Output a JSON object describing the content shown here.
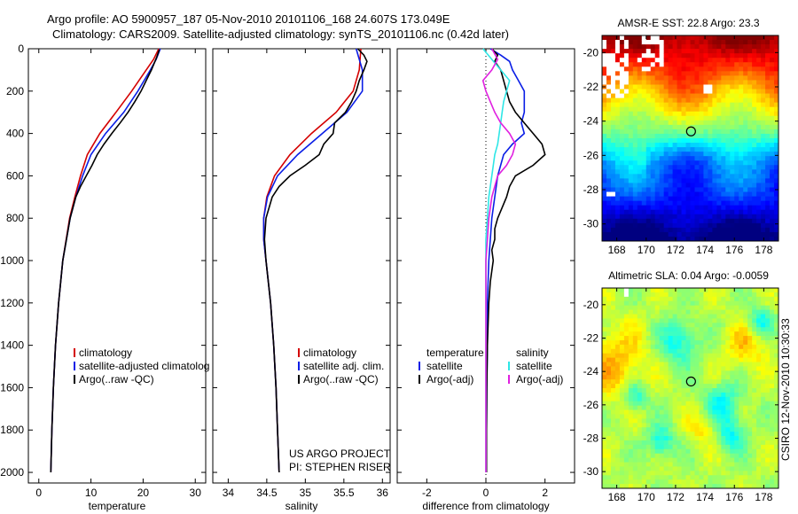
{
  "title": {
    "line1": "Argo profile: AO 5900957_187 05-Nov-2010 20101106_168 24.607S 173.049E",
    "line2": "Climatology: CARS2009. Satellite-adjusted climatology: synTS_20101106.nc (0.42d later)"
  },
  "side_label": "CSIRO 12-Nov-2010 10:30:33",
  "colors": {
    "red": "#d40000",
    "blue": "#0a1ee6",
    "black": "#000000",
    "cyan": "#2ee6e6",
    "magenta": "#e020e0"
  },
  "chart_data": [
    {
      "type": "line",
      "id": "temperature",
      "xlabel": "temperature",
      "ylabel": "",
      "xlim": [
        -2,
        32
      ],
      "ylim": [
        2050,
        0
      ],
      "xticks": [
        0,
        10,
        20,
        30
      ],
      "yticks": [
        0,
        200,
        400,
        600,
        800,
        1000,
        1200,
        1400,
        1600,
        1800,
        2000
      ],
      "legend": [
        "climatology",
        "satellite-adjusted climatolog",
        "Argo(..raw -QC)"
      ],
      "series": [
        {
          "name": "climatology",
          "color": "red",
          "y": [
            0,
            50,
            100,
            200,
            300,
            400,
            500,
            600,
            700,
            800,
            1000,
            1200,
            1400,
            1600,
            1800,
            2000
          ],
          "x": [
            23.0,
            22.0,
            20.6,
            17.8,
            14.8,
            11.7,
            9.3,
            8.0,
            6.9,
            5.9,
            4.6,
            3.8,
            3.2,
            2.8,
            2.5,
            2.3
          ]
        },
        {
          "name": "satellite-adjusted climatolog",
          "color": "blue",
          "y": [
            0,
            50,
            100,
            200,
            300,
            400,
            500,
            600,
            700,
            800,
            1000,
            1200,
            1400,
            1600,
            1800,
            2000
          ],
          "x": [
            23.3,
            22.5,
            21.4,
            19.0,
            16.3,
            12.8,
            10.0,
            8.4,
            7.1,
            6.0,
            4.6,
            3.8,
            3.2,
            2.8,
            2.5,
            2.3
          ]
        },
        {
          "name": "Argo(..raw -QC)",
          "color": "black",
          "y": [
            5,
            40,
            100,
            150,
            200,
            250,
            300,
            350,
            400,
            450,
            500,
            550,
            600,
            650,
            700,
            800,
            1000,
            1200,
            1400,
            1600,
            1800,
            2000
          ],
          "x": [
            23.1,
            22.6,
            21.6,
            20.6,
            19.6,
            18.4,
            17.1,
            15.6,
            14.0,
            12.5,
            11.2,
            10.2,
            9.1,
            8.0,
            7.1,
            6.0,
            4.6,
            3.8,
            3.2,
            2.8,
            2.5,
            2.3
          ]
        }
      ]
    },
    {
      "type": "line",
      "id": "salinity",
      "xlabel": "salinity",
      "ylabel": "",
      "xlim": [
        33.8,
        36.1
      ],
      "ylim": [
        2050,
        0
      ],
      "xticks": [
        34,
        34.5,
        35,
        35.5,
        36
      ],
      "legend": [
        "climatology",
        "satellite adj. clim.",
        "Argo(..raw -QC)"
      ],
      "annotation": [
        "US ARGO PROJECT",
        "PI: STEPHEN RISER"
      ],
      "series": [
        {
          "name": "climatology",
          "color": "red",
          "y": [
            0,
            100,
            200,
            300,
            400,
            500,
            600,
            700,
            800,
            900,
            1000,
            1200,
            1400,
            1600,
            1800,
            2000
          ],
          "x": [
            35.72,
            35.7,
            35.62,
            35.4,
            35.08,
            34.8,
            34.6,
            34.5,
            34.46,
            34.46,
            34.49,
            34.55,
            34.59,
            34.62,
            34.64,
            34.66
          ]
        },
        {
          "name": "satellite adj. clim.",
          "color": "blue",
          "y": [
            0,
            50,
            100,
            200,
            300,
            400,
            500,
            600,
            700,
            800,
            900,
            1000,
            1200,
            1400,
            1600,
            1800,
            2000
          ],
          "x": [
            35.66,
            35.7,
            35.74,
            35.74,
            35.54,
            35.22,
            34.9,
            34.64,
            34.51,
            34.46,
            34.46,
            34.49,
            34.55,
            34.59,
            34.62,
            34.64,
            34.66
          ]
        },
        {
          "name": "Argo(..raw -QC)",
          "color": "black",
          "y": [
            0,
            30,
            60,
            100,
            150,
            200,
            250,
            300,
            350,
            400,
            450,
            500,
            550,
            600,
            650,
            700,
            800,
            900,
            1000,
            1200,
            1400,
            1600,
            1800,
            2000
          ],
          "x": [
            35.68,
            35.76,
            35.8,
            35.76,
            35.7,
            35.66,
            35.6,
            35.52,
            35.38,
            35.36,
            35.24,
            35.18,
            35.0,
            34.8,
            34.66,
            34.57,
            34.49,
            34.47,
            34.49,
            34.55,
            34.59,
            34.62,
            34.64,
            34.66
          ]
        }
      ]
    },
    {
      "type": "line",
      "id": "difference",
      "xlabel": "difference from climatology",
      "ylabel": "",
      "xlim": [
        -3,
        3
      ],
      "ylim": [
        2050,
        0
      ],
      "xticks": [
        -2,
        0,
        2
      ],
      "legend": {
        "temperature_header": "temperature",
        "salinity_header": "salinity",
        "temperature": [
          "satellite",
          "Argo(-adj)"
        ],
        "salinity": [
          "satellite",
          "Argo(-adj)"
        ]
      },
      "series": [
        {
          "name": "temperature satellite",
          "color": "blue",
          "y": [
            0,
            30,
            60,
            100,
            150,
            200,
            250,
            300,
            350,
            400,
            450,
            500,
            600,
            700,
            800,
            900,
            1000,
            1200,
            1400,
            1600,
            1800,
            2000
          ],
          "x": [
            0.15,
            0.5,
            0.8,
            0.9,
            1.1,
            1.3,
            1.3,
            1.3,
            1.2,
            1.3,
            0.9,
            0.6,
            0.4,
            0.3,
            0.2,
            0.15,
            0.1,
            0.05,
            0.05,
            0.03,
            0.02,
            0.02
          ]
        },
        {
          "name": "temperature Argo(-adj)",
          "color": "black",
          "y": [
            0,
            30,
            60,
            100,
            150,
            200,
            250,
            300,
            350,
            400,
            450,
            500,
            550,
            600,
            650,
            700,
            750,
            800,
            850,
            900,
            950,
            1000,
            1100,
            1200,
            1400,
            1600,
            1800,
            2000
          ],
          "x": [
            0.2,
            0.4,
            0.3,
            0.5,
            0.6,
            0.7,
            0.8,
            1.0,
            1.3,
            1.6,
            1.9,
            2.0,
            1.6,
            1.0,
            0.8,
            0.7,
            0.55,
            0.4,
            0.3,
            0.3,
            0.2,
            0.25,
            0.15,
            0.1,
            0.05,
            0.03,
            0.02,
            0.02
          ]
        },
        {
          "name": "salinity satellite",
          "color": "cyan",
          "y": [
            0,
            50,
            100,
            150,
            200,
            250,
            300,
            350,
            400,
            450,
            500,
            600,
            700,
            800,
            900,
            1000,
            1200,
            1400,
            1600,
            1800,
            2000
          ],
          "x": [
            -0.1,
            0.2,
            0.5,
            0.8,
            0.7,
            0.6,
            0.55,
            0.5,
            0.45,
            0.4,
            0.3,
            0.2,
            0.1,
            0.05,
            0.0,
            0.0,
            0.0,
            0.0,
            0.0,
            0.0,
            0.0
          ]
        },
        {
          "name": "salinity Argo(-adj)",
          "color": "magenta",
          "y": [
            0,
            50,
            100,
            150,
            200,
            250,
            300,
            350,
            400,
            450,
            500,
            550,
            600,
            700,
            800,
            900,
            1000,
            1200,
            1400,
            1600,
            1800,
            2000
          ],
          "x": [
            0.2,
            0.4,
            0.2,
            -0.1,
            0.0,
            0.15,
            0.3,
            0.5,
            0.8,
            1.0,
            0.9,
            0.7,
            0.4,
            0.2,
            0.1,
            0.05,
            0.0,
            0.0,
            0.0,
            0.0,
            0.0,
            0.0
          ]
        }
      ]
    },
    {
      "type": "heatmap",
      "id": "sst",
      "title": "AMSR-E SST: 22.8 Argo: 23.3",
      "xlim": [
        167,
        179
      ],
      "ylim": [
        -31,
        -19
      ],
      "xticks": [
        168,
        170,
        172,
        174,
        176,
        178
      ],
      "yticks": [
        -20,
        -22,
        -24,
        -26,
        -28,
        -30
      ],
      "marker": {
        "lon": 173.05,
        "lat": -24.6
      },
      "colormap": "jet"
    },
    {
      "type": "heatmap",
      "id": "sla",
      "title": "Altimetric SLA: 0.04 Argo: -0.0059",
      "xlim": [
        167,
        179
      ],
      "ylim": [
        -31,
        -19
      ],
      "xticks": [
        168,
        170,
        172,
        174,
        176,
        178
      ],
      "yticks": [
        -20,
        -22,
        -24,
        -26,
        -28,
        -30
      ],
      "marker": {
        "lon": 173.05,
        "lat": -24.6
      },
      "colormap": "jet"
    }
  ]
}
